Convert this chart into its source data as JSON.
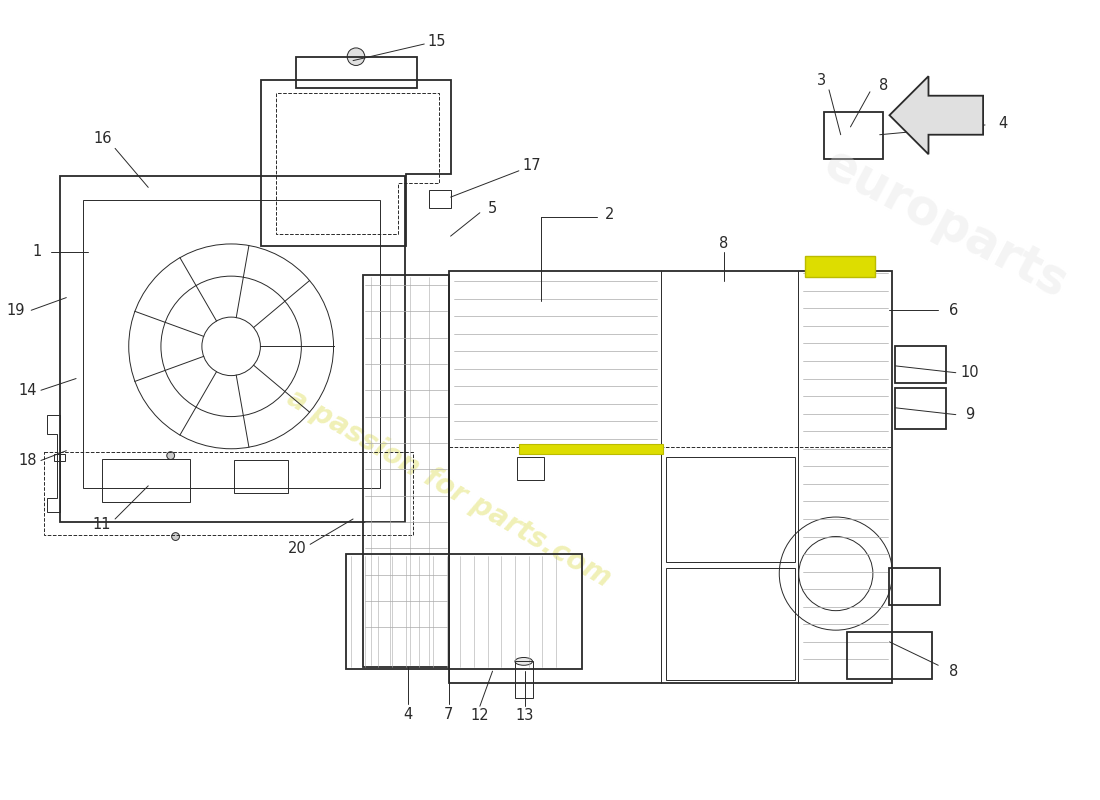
{
  "bg": "#ffffff",
  "lc": "#2a2a2a",
  "lc_dim": "#aaaaaa",
  "label_fs": 10.5,
  "watermark": "a passion for parts.com",
  "wm_color": "#eeeeaa",
  "highlight": "#dddd00",
  "lw": 1.3,
  "lw_t": 0.7
}
